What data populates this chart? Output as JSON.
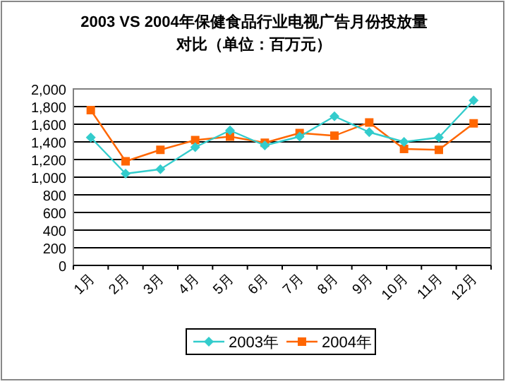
{
  "chart_data": {
    "type": "line",
    "title": "2003 VS 2004年保健食品行业电视广告月份投放量",
    "subtitle": "对比（单位：百万元）",
    "categories": [
      "1月",
      "2月",
      "3月",
      "4月",
      "5月",
      "6月",
      "7月",
      "8月",
      "9月",
      "10月",
      "11月",
      "12月"
    ],
    "series": [
      {
        "name": "2003年",
        "color": "#33cccc",
        "marker": "diamond",
        "values": [
          1450,
          1040,
          1090,
          1340,
          1530,
          1360,
          1460,
          1690,
          1510,
          1400,
          1450,
          1870
        ]
      },
      {
        "name": "2004年",
        "color": "#ff6600",
        "marker": "square",
        "values": [
          1760,
          1180,
          1310,
          1420,
          1460,
          1390,
          1500,
          1470,
          1620,
          1320,
          1310,
          1610
        ]
      }
    ],
    "ylim": [
      0,
      2000
    ],
    "yticks": [
      {
        "value": 0,
        "label": "0"
      },
      {
        "value": 200,
        "label": "200"
      },
      {
        "value": 400,
        "label": "400"
      },
      {
        "value": 600,
        "label": "600"
      },
      {
        "value": 800,
        "label": "800"
      },
      {
        "value": 1000,
        "label": "1,000"
      },
      {
        "value": 1200,
        "label": "1,200"
      },
      {
        "value": 1400,
        "label": "1,400"
      },
      {
        "value": 1600,
        "label": "1,600"
      },
      {
        "value": 1800,
        "label": "1,800"
      },
      {
        "value": 2000,
        "label": "2,000"
      }
    ],
    "grid": "y",
    "legend": "bottom"
  }
}
